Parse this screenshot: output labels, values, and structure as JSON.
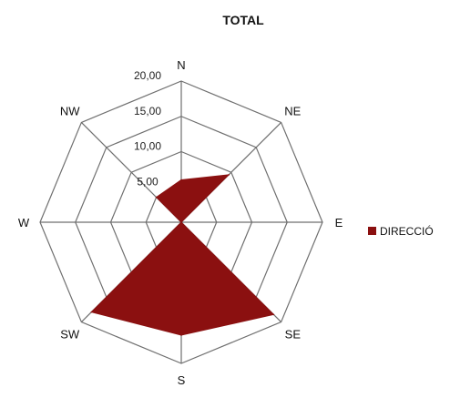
{
  "chart_data": {
    "type": "radar",
    "title": "TOTAL",
    "categories": [
      "N",
      "NE",
      "E",
      "SE",
      "S",
      "SW",
      "W",
      "NW"
    ],
    "series": [
      {
        "name": "DIRECCIÓ",
        "values": [
          6.0,
          9.5,
          0,
          18.5,
          16.0,
          18.0,
          0,
          5.0
        ],
        "color": "#8b1010"
      }
    ],
    "rlim": [
      0,
      20
    ],
    "r_ticks": [
      0,
      5,
      10,
      15,
      20
    ],
    "r_tick_labels": [
      "",
      "5,00",
      "10,00",
      "15,00",
      "20,00"
    ],
    "grid": true,
    "legend": "right"
  }
}
